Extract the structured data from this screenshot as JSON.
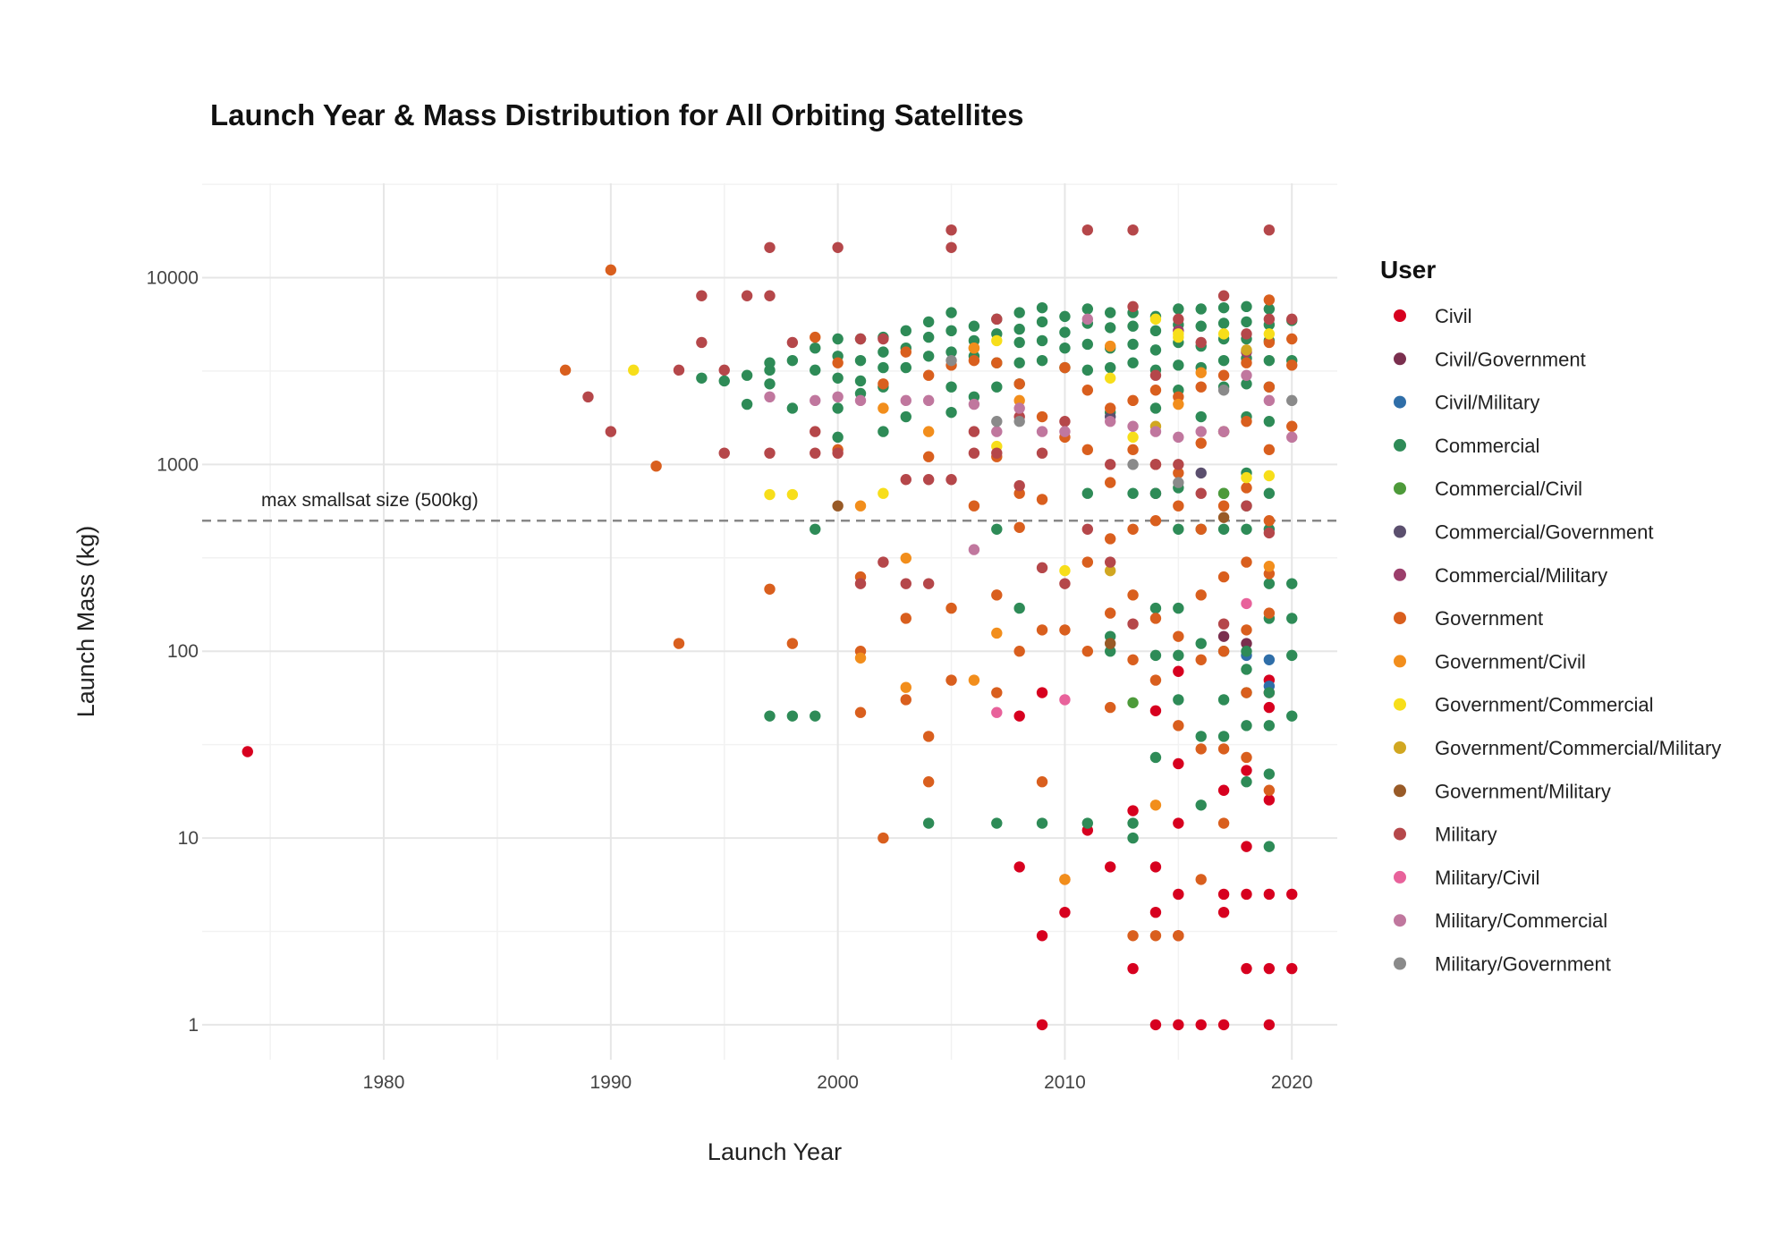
{
  "chart_data": {
    "type": "scatter",
    "title": "Launch Year & Mass Distribution for All Orbiting Satellites",
    "xlabel": "Launch Year",
    "ylabel": "Launch Mass (kg)",
    "x_scale": "linear",
    "y_scale": "log",
    "xlim": [
      1972,
      2022
    ],
    "ylim": [
      0.65,
      32000
    ],
    "x_ticks": [
      1980,
      1990,
      2000,
      2010,
      2020
    ],
    "x_tick_labels": [
      "1980",
      "1990",
      "2000",
      "2010",
      "2020"
    ],
    "y_ticks": [
      1,
      10,
      100,
      1000,
      10000
    ],
    "y_tick_labels": [
      "1",
      "10",
      "100",
      "1000",
      "10000"
    ],
    "grid": true,
    "legend_title": "User",
    "legend_position": "right",
    "reference_line": {
      "y": 500,
      "label": "max smallsat size (500kg)"
    },
    "series": [
      {
        "name": "Civil",
        "color": "#d7001f",
        "x": [
          1974,
          2009,
          2009,
          2011,
          2012,
          2013,
          2013,
          2014,
          2014,
          2014,
          2015,
          2015,
          2015,
          2015,
          2015,
          2015,
          2016,
          2017,
          2017,
          2017,
          2017,
          2018,
          2018,
          2018,
          2018,
          2019,
          2019,
          2019,
          2019,
          2019,
          2019,
          2020,
          2020,
          2008,
          2009,
          2008,
          2010,
          2014,
          2019
        ],
        "y": [
          29,
          3,
          1,
          11,
          7,
          14,
          2,
          1,
          4,
          7,
          1,
          3,
          5,
          12,
          25,
          78,
          1,
          4,
          18,
          1,
          5,
          9,
          23,
          2,
          5,
          1,
          2,
          5,
          16,
          60,
          70,
          2,
          5,
          7,
          60,
          45,
          4,
          48,
          50
        ]
      },
      {
        "name": "Civil/Government",
        "color": "#7a2f4e",
        "x": [
          2014,
          2017,
          2018
        ],
        "y": [
          700,
          120,
          110
        ]
      },
      {
        "name": "Civil/Military",
        "color": "#2f6ea8",
        "x": [
          2019,
          2019,
          2018
        ],
        "y": [
          90,
          65,
          95
        ]
      },
      {
        "name": "Commercial",
        "color": "#2e8b57",
        "x": [
          1994,
          1995,
          1996,
          1996,
          1997,
          1997,
          1997,
          1997,
          1998,
          1998,
          1998,
          1999,
          1999,
          1999,
          1999,
          2000,
          2000,
          2000,
          2000,
          2000,
          2001,
          2001,
          2001,
          2001,
          2002,
          2002,
          2002,
          2002,
          2002,
          2003,
          2003,
          2003,
          2003,
          2004,
          2004,
          2004,
          2004,
          2005,
          2005,
          2005,
          2005,
          2005,
          2006,
          2006,
          2006,
          2006,
          2007,
          2007,
          2007,
          2007,
          2007,
          2007,
          2008,
          2008,
          2008,
          2008,
          2008,
          2008,
          2009,
          2009,
          2009,
          2009,
          2009,
          2010,
          2010,
          2010,
          2010,
          2011,
          2011,
          2011,
          2011,
          2011,
          2011,
          2012,
          2012,
          2012,
          2012,
          2012,
          2012,
          2012,
          2013,
          2013,
          2013,
          2013,
          2013,
          2013,
          2013,
          2014,
          2014,
          2014,
          2014,
          2014,
          2014,
          2014,
          2014,
          2014,
          2015,
          2015,
          2015,
          2015,
          2015,
          2015,
          2015,
          2015,
          2015,
          2015,
          2016,
          2016,
          2016,
          2016,
          2016,
          2016,
          2016,
          2016,
          2016,
          2017,
          2017,
          2017,
          2017,
          2017,
          2017,
          2017,
          2017,
          2017,
          2017,
          2017,
          2018,
          2018,
          2018,
          2018,
          2018,
          2018,
          2018,
          2018,
          2018,
          2018,
          2018,
          2018,
          2018,
          2018,
          2019,
          2019,
          2019,
          2019,
          2019,
          2019,
          2019,
          2019,
          2019,
          2019,
          2019,
          2019,
          2019,
          2019,
          2020,
          2020,
          2020,
          2020,
          2020,
          2020
        ],
        "y": [
          2900,
          2800,
          2100,
          3000,
          2700,
          3200,
          3500,
          45,
          3600,
          2000,
          45,
          4200,
          3200,
          450,
          45,
          4700,
          3800,
          2900,
          2000,
          1400,
          4700,
          3600,
          2800,
          2400,
          4800,
          4000,
          3300,
          2600,
          1500,
          5200,
          4200,
          3300,
          1800,
          5800,
          4800,
          3800,
          12,
          6500,
          5200,
          4000,
          2600,
          1900,
          5500,
          4600,
          3800,
          2300,
          6000,
          5000,
          3500,
          2600,
          450,
          12,
          6500,
          5300,
          4500,
          3500,
          2700,
          170,
          6900,
          5800,
          4600,
          3600,
          12,
          6200,
          5100,
          4200,
          3300,
          6800,
          5700,
          4400,
          3200,
          700,
          12,
          6500,
          5400,
          4200,
          3300,
          1900,
          120,
          100,
          6500,
          5500,
          4400,
          3500,
          700,
          12,
          10,
          6200,
          5200,
          4100,
          3200,
          2000,
          700,
          170,
          95,
          27,
          6800,
          5600,
          4500,
          3400,
          2500,
          750,
          450,
          170,
          95,
          55,
          6800,
          5500,
          4300,
          3300,
          1800,
          450,
          110,
          35,
          15,
          6900,
          5700,
          4700,
          3600,
          2600,
          1500,
          700,
          450,
          100,
          55,
          35,
          7000,
          5800,
          4700,
          3700,
          2700,
          1800,
          900,
          600,
          450,
          100,
          80,
          60,
          40,
          20,
          6800,
          5600,
          4600,
          3600,
          2600,
          1700,
          700,
          450,
          230,
          150,
          60,
          40,
          22,
          9,
          5900,
          3600,
          230,
          150,
          95,
          45
        ]
      },
      {
        "name": "Commercial/Civil",
        "color": "#4d9a3a",
        "x": [
          2013,
          2017
        ],
        "y": [
          53,
          700
        ]
      },
      {
        "name": "Commercial/Government",
        "color": "#5b4f6e",
        "x": [
          2012,
          2016
        ],
        "y": [
          1800,
          900
        ]
      },
      {
        "name": "Commercial/Military",
        "color": "#9b3e6b",
        "x": [
          2015,
          2018
        ],
        "y": [
          5200,
          4000
        ]
      },
      {
        "name": "Government",
        "color": "#d95f1e",
        "x": [
          1988,
          1990,
          1992,
          1993,
          1997,
          1998,
          1999,
          2000,
          2000,
          2001,
          2001,
          2001,
          2002,
          2002,
          2003,
          2003,
          2003,
          2004,
          2004,
          2004,
          2004,
          2005,
          2005,
          2005,
          2006,
          2006,
          2006,
          2007,
          2007,
          2007,
          2007,
          2008,
          2008,
          2008,
          2008,
          2009,
          2009,
          2009,
          2009,
          2010,
          2010,
          2010,
          2010,
          2011,
          2011,
          2011,
          2011,
          2012,
          2012,
          2012,
          2012,
          2012,
          2013,
          2013,
          2013,
          2013,
          2013,
          2013,
          2014,
          2014,
          2014,
          2014,
          2014,
          2014,
          2015,
          2015,
          2015,
          2015,
          2015,
          2015,
          2016,
          2016,
          2016,
          2016,
          2016,
          2016,
          2016,
          2017,
          2017,
          2017,
          2017,
          2017,
          2017,
          2017,
          2018,
          2018,
          2018,
          2018,
          2018,
          2018,
          2018,
          2019,
          2019,
          2019,
          2019,
          2019,
          2019,
          2019,
          2019,
          2020,
          2020,
          2020
        ],
        "y": [
          3200,
          11000,
          980,
          110,
          215,
          110,
          4800,
          1200,
          3500,
          250,
          100,
          47,
          2700,
          10,
          4000,
          150,
          55,
          3000,
          1100,
          35,
          20,
          3400,
          170,
          70,
          3600,
          600,
          4200,
          3500,
          1100,
          200,
          60,
          2700,
          700,
          460,
          100,
          1800,
          650,
          130,
          20,
          3300,
          1400,
          130,
          6,
          2500,
          1200,
          300,
          100,
          2000,
          800,
          400,
          160,
          50,
          2200,
          1200,
          450,
          200,
          90,
          3,
          2500,
          1000,
          500,
          150,
          70,
          3,
          2300,
          900,
          600,
          120,
          40,
          3,
          2600,
          1300,
          450,
          200,
          90,
          30,
          6,
          3000,
          1500,
          600,
          250,
          100,
          30,
          12,
          3500,
          1700,
          750,
          300,
          130,
          60,
          27,
          7600,
          4500,
          2600,
          1200,
          500,
          260,
          160,
          18,
          4700,
          3400,
          1600
        ]
      },
      {
        "name": "Government/Civil",
        "color": "#f28e1c",
        "x": [
          2001,
          2001,
          2002,
          2003,
          2003,
          2004,
          2006,
          2006,
          2007,
          2008,
          2010,
          2012,
          2014,
          2015,
          2016,
          2019
        ],
        "y": [
          600,
          92,
          2000,
          315,
          64,
          1500,
          4200,
          70,
          125,
          2200,
          6,
          4300,
          15,
          2100,
          3100,
          285
        ]
      },
      {
        "name": "Government/Commercial",
        "color": "#f7de1a",
        "x": [
          1991,
          1997,
          1998,
          2002,
          2007,
          2007,
          2010,
          2012,
          2013,
          2014,
          2015,
          2015,
          2017,
          2018,
          2019,
          2019
        ],
        "y": [
          3200,
          690,
          690,
          700,
          4600,
          1250,
          270,
          2900,
          1400,
          6000,
          5000,
          4800,
          5000,
          850,
          870,
          5000
        ]
      },
      {
        "name": "Government/Commercial/Military",
        "color": "#d1a721",
        "x": [
          2012,
          2014,
          2018
        ],
        "y": [
          270,
          1600,
          4100
        ]
      },
      {
        "name": "Government/Military",
        "color": "#985a27",
        "x": [
          2000,
          2012,
          2017
        ],
        "y": [
          600,
          110,
          520
        ]
      },
      {
        "name": "Military",
        "color": "#b5474a",
        "x": [
          1989,
          1990,
          1993,
          1994,
          1994,
          1995,
          1995,
          1996,
          1997,
          1997,
          1997,
          1998,
          1999,
          1999,
          2000,
          2000,
          2001,
          2001,
          2002,
          2002,
          2003,
          2003,
          2004,
          2004,
          2005,
          2005,
          2005,
          2006,
          2006,
          2007,
          2007,
          2008,
          2008,
          2009,
          2009,
          2010,
          2010,
          2011,
          2011,
          2012,
          2012,
          2013,
          2013,
          2013,
          2014,
          2014,
          2015,
          2015,
          2016,
          2016,
          2017,
          2017,
          2018,
          2018,
          2019,
          2019,
          2019,
          2020
        ],
        "y": [
          2300,
          1500,
          3200,
          8000,
          4500,
          3200,
          1150,
          8000,
          14500,
          8000,
          1150,
          4500,
          1150,
          1500,
          14500,
          1150,
          4700,
          230,
          4700,
          300,
          830,
          230,
          830,
          230,
          18000,
          14500,
          830,
          1150,
          1500,
          6000,
          1150,
          1800,
          770,
          1150,
          280,
          1700,
          230,
          18000,
          450,
          1000,
          300,
          18000,
          7000,
          140,
          3000,
          1000,
          6000,
          1000,
          4500,
          700,
          8000,
          140,
          5000,
          600,
          18000,
          6000,
          430,
          6000
        ]
      },
      {
        "name": "Military/Civil",
        "color": "#e8629b",
        "x": [
          2007,
          2010,
          2018
        ],
        "y": [
          47,
          55,
          180
        ]
      },
      {
        "name": "Military/Commercial",
        "color": "#c0779e",
        "x": [
          1997,
          1999,
          2000,
          2001,
          2003,
          2004,
          2006,
          2006,
          2007,
          2008,
          2009,
          2010,
          2011,
          2012,
          2013,
          2014,
          2015,
          2016,
          2017,
          2018,
          2019,
          2020
        ],
        "y": [
          2300,
          2200,
          2300,
          2200,
          2200,
          2200,
          350,
          2100,
          1500,
          2000,
          1500,
          1500,
          6000,
          1700,
          1600,
          1500,
          1400,
          1500,
          1500,
          3000,
          2200,
          1400
        ]
      },
      {
        "name": "Military/Government",
        "color": "#8a8a8a",
        "x": [
          2005,
          2007,
          2008,
          2013,
          2015,
          2017,
          2020
        ],
        "y": [
          3600,
          1700,
          1700,
          1000,
          800,
          2500,
          2200
        ]
      }
    ]
  }
}
